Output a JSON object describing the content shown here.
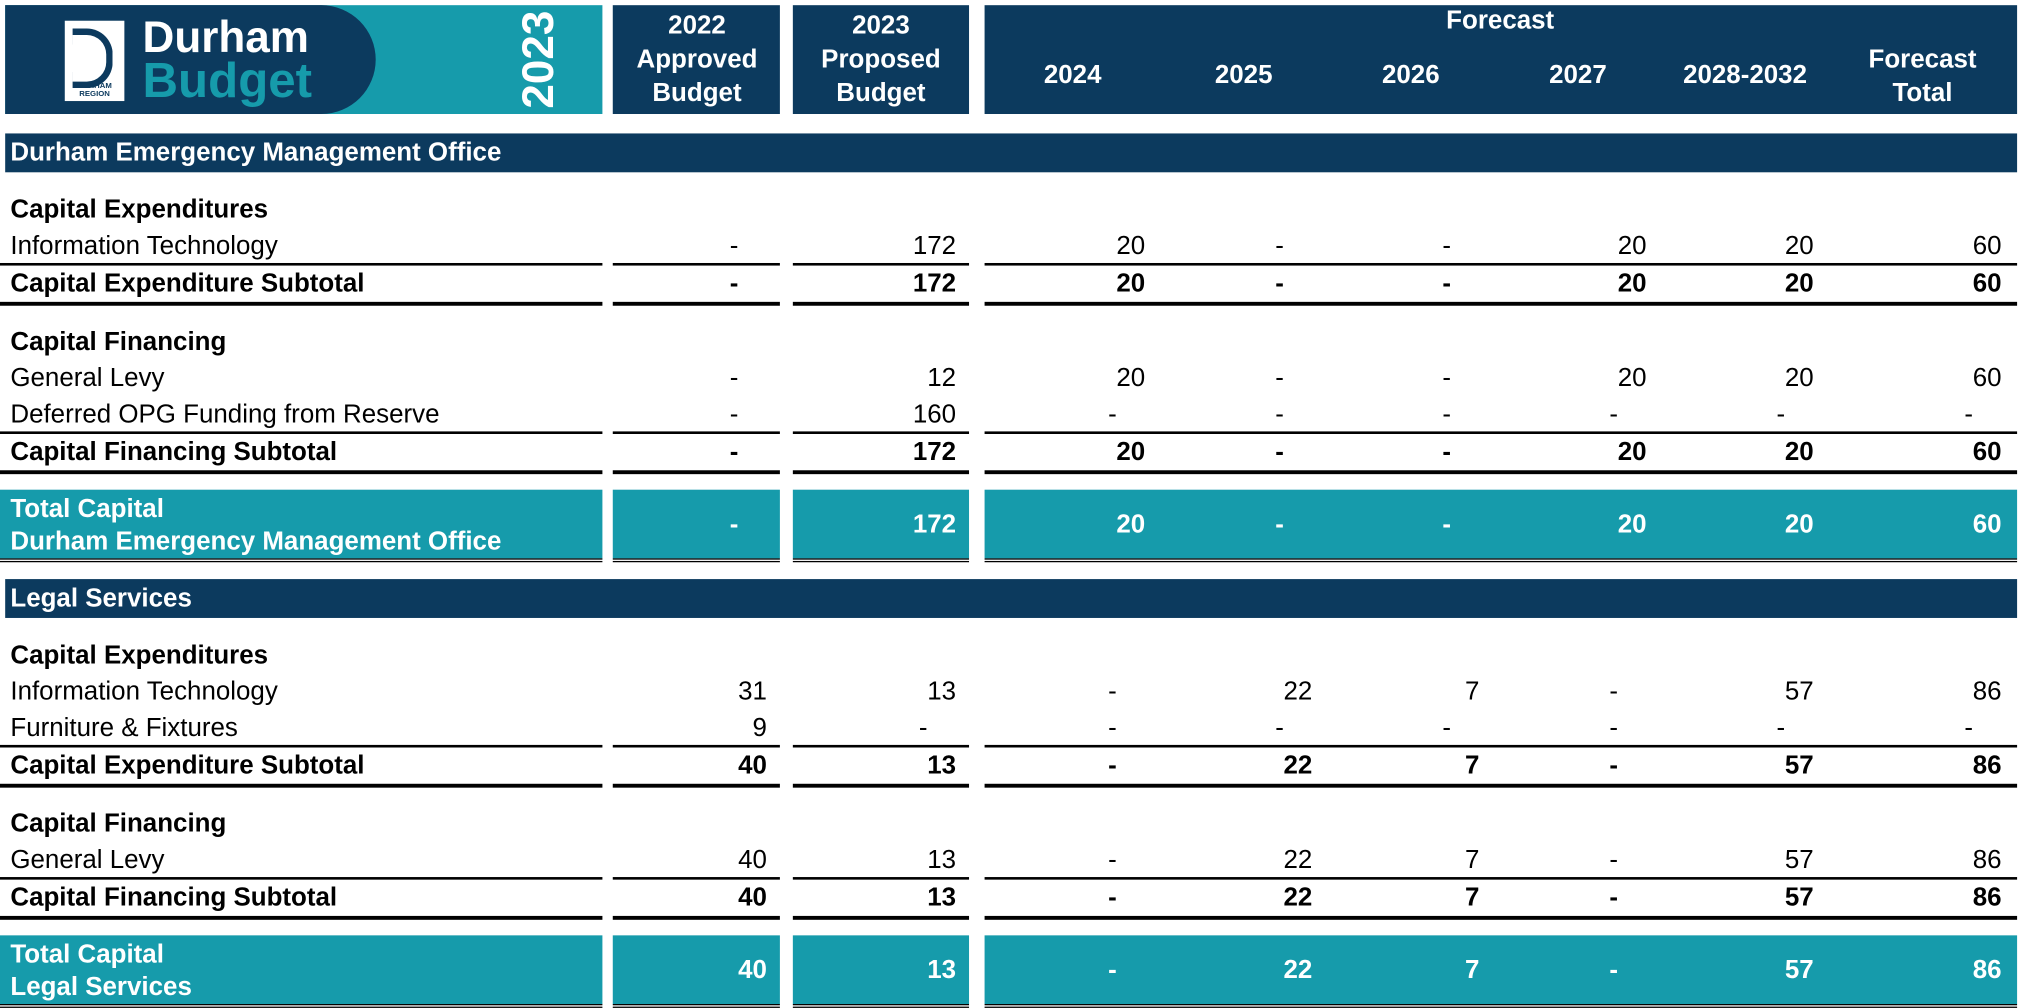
{
  "header": {
    "logo_text": "DURHAM REGION",
    "title_line1": "Durham",
    "title_line2": "Budget",
    "year": "2023"
  },
  "columns": [
    [
      "2022",
      "Approved",
      "Budget"
    ],
    [
      "2023",
      "Proposed",
      "Budget"
    ],
    [
      "2024"
    ],
    [
      "2025"
    ],
    [
      "2026"
    ],
    [
      "2027"
    ],
    [
      "2028-2032"
    ],
    [
      "Forecast",
      "Total"
    ]
  ],
  "forecast_label": "Forecast",
  "sections": [
    {
      "title": "Durham Emergency Management Office",
      "groups": [
        {
          "heading": "Capital Expenditures",
          "rows": [
            {
              "label": "Information Technology",
              "values": [
                "-",
                172,
                20,
                "-",
                "-",
                20,
                20,
                60
              ]
            }
          ],
          "subtotal": {
            "label": "Capital Expenditure Subtotal",
            "values": [
              "-",
              172,
              20,
              "-",
              "-",
              20,
              20,
              60
            ]
          }
        },
        {
          "heading": "Capital Financing",
          "rows": [
            {
              "label": "General Levy",
              "values": [
                "-",
                12,
                20,
                "-",
                "-",
                20,
                20,
                60
              ]
            },
            {
              "label": "Deferred OPG Funding from Reserve",
              "values": [
                "-",
                160,
                "-",
                "-",
                "-",
                "-",
                "-",
                "-"
              ]
            }
          ],
          "subtotal": {
            "label": "Capital Financing Subtotal",
            "values": [
              "-",
              172,
              20,
              "-",
              "-",
              20,
              20,
              60
            ]
          }
        }
      ],
      "total": {
        "lines": [
          "Total Capital",
          "Durham Emergency Management Office"
        ],
        "values": [
          "-",
          172,
          20,
          "-",
          "-",
          20,
          20,
          60
        ]
      }
    },
    {
      "title": "Legal Services",
      "groups": [
        {
          "heading": "Capital Expenditures",
          "rows": [
            {
              "label": "Information Technology",
              "values": [
                31,
                13,
                "-",
                22,
                7,
                "-",
                57,
                86
              ]
            },
            {
              "label": "Furniture & Fixtures",
              "values": [
                9,
                "-",
                "-",
                "-",
                "-",
                "-",
                "-",
                "-"
              ]
            }
          ],
          "subtotal": {
            "label": "Capital Expenditure Subtotal",
            "values": [
              40,
              13,
              "-",
              22,
              7,
              "-",
              57,
              86
            ]
          }
        },
        {
          "heading": "Capital Financing",
          "rows": [
            {
              "label": "General Levy",
              "values": [
                40,
                13,
                "-",
                22,
                7,
                "-",
                57,
                86
              ]
            }
          ],
          "subtotal": {
            "label": "Capital Financing Subtotal",
            "values": [
              40,
              13,
              "-",
              22,
              7,
              "-",
              57,
              86
            ]
          }
        }
      ],
      "total": {
        "lines": [
          "Total Capital",
          "Legal Services"
        ],
        "values": [
          40,
          13,
          "-",
          22,
          7,
          "-",
          57,
          86
        ]
      }
    }
  ]
}
